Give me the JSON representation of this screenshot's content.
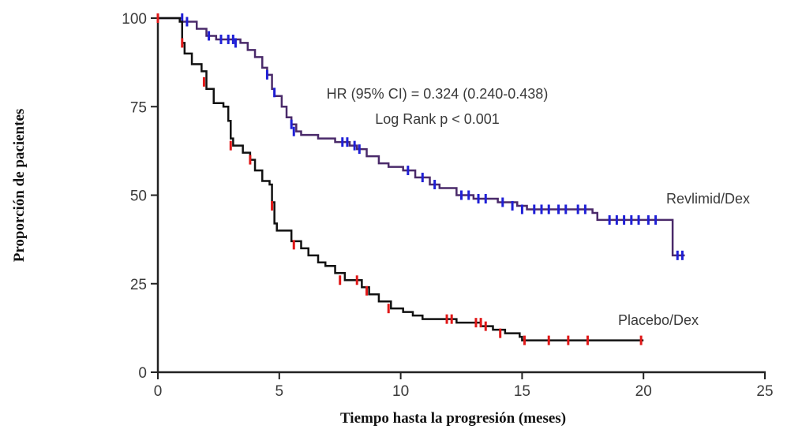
{
  "chart_data": {
    "type": "line",
    "xlabel": "Tiempo hasta la progresión (meses)",
    "ylabel": "Proporción de pacientes",
    "xlim": [
      0,
      25
    ],
    "ylim": [
      0,
      100
    ],
    "xticks": [
      "0",
      "5",
      "10",
      "15",
      "20",
      "25"
    ],
    "yticks": [
      "0",
      "25",
      "50",
      "75",
      "100"
    ],
    "grid": false,
    "annotations": [
      "HR (95% CI) = 0.324 (0.240-0.438)",
      "Log Rank p < 0.001"
    ],
    "series": [
      {
        "name": "Revlimid/Dex",
        "color": "#4a2a6a",
        "censor_color": "#1f1fd6",
        "steps": [
          [
            0,
            100
          ],
          [
            1.0,
            99
          ],
          [
            1.6,
            97
          ],
          [
            2.0,
            95
          ],
          [
            2.4,
            94
          ],
          [
            3.4,
            93
          ],
          [
            3.7,
            91
          ],
          [
            4.0,
            89
          ],
          [
            4.3,
            86
          ],
          [
            4.5,
            84
          ],
          [
            4.7,
            80
          ],
          [
            4.8,
            78
          ],
          [
            5.1,
            75
          ],
          [
            5.3,
            72
          ],
          [
            5.5,
            70
          ],
          [
            5.7,
            68
          ],
          [
            5.9,
            67
          ],
          [
            6.6,
            66
          ],
          [
            7.3,
            65
          ],
          [
            7.9,
            64
          ],
          [
            8.2,
            63
          ],
          [
            8.6,
            61
          ],
          [
            9.1,
            59
          ],
          [
            9.5,
            58
          ],
          [
            10.1,
            57
          ],
          [
            10.6,
            55
          ],
          [
            11.2,
            53
          ],
          [
            11.6,
            52
          ],
          [
            12.3,
            50
          ],
          [
            13.0,
            49
          ],
          [
            14.0,
            48
          ],
          [
            14.8,
            47
          ],
          [
            15.2,
            46
          ],
          [
            17.9,
            45
          ],
          [
            18.1,
            43
          ],
          [
            21.2,
            42
          ],
          [
            21.2,
            33
          ],
          [
            21.7,
            33
          ]
        ],
        "censored": [
          [
            1.0,
            100
          ],
          [
            1.2,
            99
          ],
          [
            2.1,
            95
          ],
          [
            2.6,
            94
          ],
          [
            2.9,
            94
          ],
          [
            3.1,
            94
          ],
          [
            3.2,
            93
          ],
          [
            4.5,
            84
          ],
          [
            4.8,
            79
          ],
          [
            5.5,
            70
          ],
          [
            5.6,
            68
          ],
          [
            7.6,
            65
          ],
          [
            7.8,
            65
          ],
          [
            8.1,
            64
          ],
          [
            8.3,
            63
          ],
          [
            10.3,
            57
          ],
          [
            10.9,
            55
          ],
          [
            11.4,
            53
          ],
          [
            12.5,
            50
          ],
          [
            12.8,
            50
          ],
          [
            13.2,
            49
          ],
          [
            13.5,
            49
          ],
          [
            14.2,
            48
          ],
          [
            14.6,
            47
          ],
          [
            15.0,
            46
          ],
          [
            15.5,
            46
          ],
          [
            15.8,
            46
          ],
          [
            16.1,
            46
          ],
          [
            16.5,
            46
          ],
          [
            16.8,
            46
          ],
          [
            17.3,
            46
          ],
          [
            17.6,
            46
          ],
          [
            18.6,
            43
          ],
          [
            18.9,
            43
          ],
          [
            19.2,
            43
          ],
          [
            19.5,
            43
          ],
          [
            19.8,
            43
          ],
          [
            20.2,
            43
          ],
          [
            20.5,
            43
          ],
          [
            21.4,
            33
          ],
          [
            21.6,
            33
          ]
        ]
      },
      {
        "name": "Placebo/Dex",
        "color": "#111111",
        "censor_color": "#e01818",
        "steps": [
          [
            0,
            100
          ],
          [
            0.9,
            99
          ],
          [
            1.0,
            93
          ],
          [
            1.1,
            90
          ],
          [
            1.4,
            87
          ],
          [
            1.8,
            85
          ],
          [
            2.0,
            80
          ],
          [
            2.3,
            76
          ],
          [
            2.7,
            75
          ],
          [
            2.9,
            71
          ],
          [
            3.0,
            66
          ],
          [
            3.1,
            64
          ],
          [
            3.5,
            62
          ],
          [
            3.8,
            60
          ],
          [
            4.0,
            57
          ],
          [
            4.3,
            54
          ],
          [
            4.6,
            53
          ],
          [
            4.7,
            48
          ],
          [
            4.8,
            42
          ],
          [
            4.9,
            40
          ],
          [
            5.5,
            37
          ],
          [
            5.9,
            35
          ],
          [
            6.2,
            33
          ],
          [
            6.6,
            31
          ],
          [
            6.9,
            30
          ],
          [
            7.3,
            28
          ],
          [
            7.7,
            26
          ],
          [
            8.4,
            24
          ],
          [
            8.7,
            22
          ],
          [
            9.1,
            20
          ],
          [
            9.6,
            18
          ],
          [
            10.1,
            17
          ],
          [
            10.5,
            16
          ],
          [
            10.9,
            15
          ],
          [
            11.7,
            15
          ],
          [
            12.3,
            14
          ],
          [
            13.3,
            13
          ],
          [
            13.8,
            12
          ],
          [
            14.3,
            11
          ],
          [
            14.9,
            10
          ],
          [
            15.0,
            9
          ],
          [
            20.0,
            9
          ]
        ],
        "censored": [
          [
            0,
            100
          ],
          [
            1.0,
            93
          ],
          [
            1.9,
            82
          ],
          [
            3.0,
            64
          ],
          [
            3.8,
            60
          ],
          [
            4.7,
            47
          ],
          [
            5.6,
            36
          ],
          [
            7.5,
            26
          ],
          [
            8.2,
            26
          ],
          [
            8.6,
            23
          ],
          [
            9.5,
            18
          ],
          [
            11.9,
            15
          ],
          [
            12.1,
            15
          ],
          [
            13.1,
            14
          ],
          [
            13.3,
            14
          ],
          [
            13.5,
            13
          ],
          [
            14.1,
            11
          ],
          [
            15.1,
            9
          ],
          [
            16.1,
            9
          ],
          [
            16.9,
            9
          ],
          [
            17.7,
            9
          ],
          [
            19.9,
            9
          ]
        ]
      }
    ],
    "series_labels": [
      "Revlimid/Dex",
      "Placebo/Dex"
    ]
  }
}
